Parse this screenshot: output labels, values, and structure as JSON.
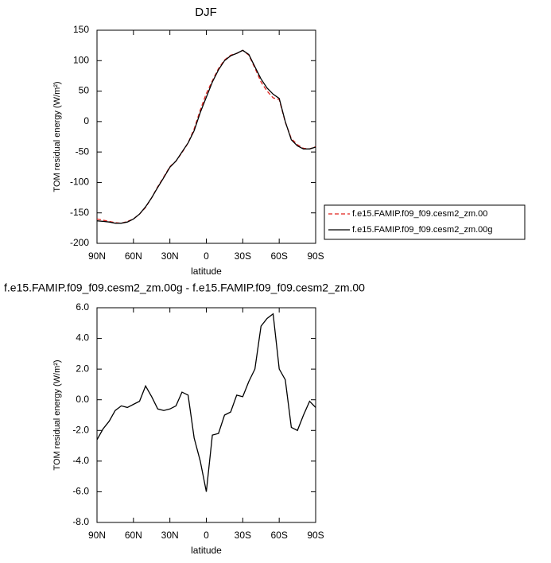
{
  "chart_data": [
    {
      "type": "line",
      "title": "DJF",
      "xlabel": "latitude",
      "ylabel": "TOM residual energy (W/m²)",
      "x": [
        90,
        85,
        80,
        75,
        70,
        65,
        60,
        55,
        50,
        45,
        40,
        35,
        30,
        25,
        20,
        15,
        10,
        5,
        0,
        -5,
        -10,
        -15,
        -20,
        -25,
        -30,
        -35,
        -40,
        -45,
        -50,
        -55,
        -60,
        -65,
        -70,
        -75,
        -80,
        -85,
        -90
      ],
      "series": [
        {
          "name": "f.e15.FAMIP.f09_f09.cesm2_zm.00",
          "color": "#e0201b",
          "dash": "dashed",
          "values": [
            -160,
            -162,
            -164,
            -166,
            -167,
            -164,
            -160,
            -152,
            -141,
            -125,
            -107,
            -91,
            -74,
            -65,
            -51,
            -35,
            -12,
            19,
            46,
            67,
            87,
            101,
            109,
            112,
            117,
            109,
            88,
            65,
            50,
            39,
            36,
            -1,
            -28,
            -38,
            -44,
            -45,
            -41
          ]
        },
        {
          "name": "f.e15.FAMIP.f09_f09.cesm2_zm.00g",
          "color": "#000000",
          "dash": "solid",
          "values": [
            -163,
            -164,
            -165,
            -167,
            -167,
            -165,
            -160,
            -152,
            -140,
            -125,
            -108,
            -92,
            -75,
            -65,
            -50,
            -35,
            -15,
            15,
            40,
            65,
            85,
            100,
            108,
            112,
            117,
            110,
            90,
            70,
            55,
            45,
            38,
            0,
            -30,
            -40,
            -45,
            -45,
            -42
          ]
        }
      ],
      "xlim": [
        90,
        -90
      ],
      "xticks": [
        {
          "value": 90,
          "label": "90N"
        },
        {
          "value": 60,
          "label": "60N"
        },
        {
          "value": 30,
          "label": "30N"
        },
        0,
        {
          "value": -30,
          "label": "30S"
        },
        {
          "value": -60,
          "label": "60S"
        },
        {
          "value": -90,
          "label": "90S"
        }
      ],
      "ylim": [
        -200,
        150
      ],
      "yticks": [
        -200,
        -150,
        -100,
        -50,
        0,
        50,
        100,
        150
      ],
      "legend": "right"
    },
    {
      "type": "line",
      "title": "f.e15.FAMIP.f09_f09.cesm2_zm.00g - f.e15.FAMIP.f09_f09.cesm2_zm.00",
      "xlabel": "latitude",
      "ylabel": "TOM residual energy (W/m²)",
      "x": [
        90,
        85,
        80,
        75,
        70,
        65,
        60,
        55,
        50,
        45,
        40,
        35,
        30,
        25,
        20,
        15,
        10,
        5,
        0,
        -5,
        -10,
        -15,
        -20,
        -25,
        -30,
        -35,
        -40,
        -45,
        -50,
        -55,
        -60,
        -65,
        -70,
        -75,
        -80,
        -85,
        -90
      ],
      "series": [
        {
          "color": "#000000",
          "dash": "solid",
          "values": [
            -2.6,
            -1.9,
            -1.4,
            -0.7,
            -0.4,
            -0.5,
            -0.3,
            -0.1,
            0.9,
            0.2,
            -0.6,
            -0.7,
            -0.6,
            -0.4,
            0.5,
            0.3,
            -2.5,
            -4.0,
            -6.0,
            -2.3,
            -2.2,
            -1.0,
            -0.8,
            0.3,
            0.2,
            1.2,
            2.0,
            4.8,
            5.3,
            5.6,
            2.0,
            1.3,
            -1.8,
            -2.0,
            -1.0,
            -0.1,
            -0.5
          ]
        }
      ],
      "xlim": [
        90,
        -90
      ],
      "xticks": [
        {
          "value": 90,
          "label": "90N"
        },
        {
          "value": 60,
          "label": "60N"
        },
        {
          "value": 30,
          "label": "30N"
        },
        0,
        {
          "value": -30,
          "label": "30S"
        },
        {
          "value": -60,
          "label": "60S"
        },
        {
          "value": -90,
          "label": "90S"
        }
      ],
      "ylim": [
        -8,
        6
      ],
      "yticks": [
        {
          "value": -8,
          "label": "-8.0"
        },
        {
          "value": -6,
          "label": "-6.0"
        },
        {
          "value": -4,
          "label": "-4.0"
        },
        {
          "value": -2,
          "label": "-2.0"
        },
        {
          "value": 0,
          "label": "0.0"
        },
        {
          "value": 2,
          "label": "2.0"
        },
        {
          "value": 4,
          "label": "4.0"
        },
        {
          "value": 6,
          "label": "6.0"
        }
      ]
    }
  ]
}
